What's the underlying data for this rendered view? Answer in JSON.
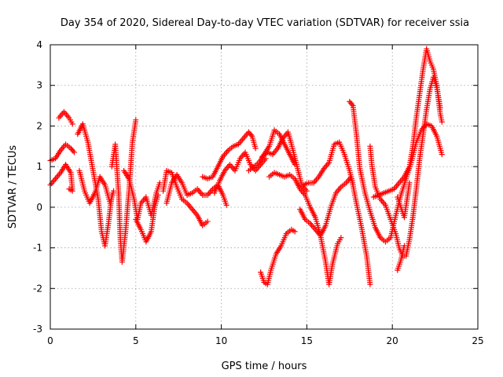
{
  "chart_data": {
    "type": "scatter",
    "title": "Day 354 of 2020, Sidereal Day-to-day VTEC variation (SDTVAR) for receiver ssia",
    "xlabel": "GPS time / hours",
    "ylabel": "SDTVAR / TECUs",
    "xlim": [
      0,
      25
    ],
    "ylim": [
      -3,
      4
    ],
    "xticks": [
      0,
      5,
      10,
      15,
      20,
      25
    ],
    "yticks": [
      -3,
      -2,
      -1,
      0,
      1,
      2,
      3,
      4
    ],
    "grid": true,
    "marker": "+",
    "color": "#ff0000",
    "series": [
      {
        "name": "track-a",
        "points": [
          [
            0.0,
            1.15
          ],
          [
            0.3,
            1.2
          ],
          [
            0.6,
            1.4
          ],
          [
            0.9,
            1.55
          ],
          [
            1.2,
            1.45
          ],
          [
            1.4,
            1.35
          ]
        ]
      },
      {
        "name": "track-b",
        "points": [
          [
            0.5,
            2.2
          ],
          [
            0.8,
            2.35
          ],
          [
            1.1,
            2.2
          ],
          [
            1.3,
            2.05
          ]
        ]
      },
      {
        "name": "track-c",
        "points": [
          [
            0.0,
            0.55
          ],
          [
            0.3,
            0.7
          ],
          [
            0.6,
            0.85
          ],
          [
            0.9,
            1.05
          ],
          [
            1.2,
            0.85
          ],
          [
            1.3,
            0.4
          ],
          [
            1.1,
            0.45
          ]
        ]
      },
      {
        "name": "track-d",
        "points": [
          [
            1.6,
            1.8
          ],
          [
            1.9,
            2.05
          ],
          [
            2.2,
            1.6
          ],
          [
            2.5,
            0.9
          ],
          [
            2.8,
            0.2
          ],
          [
            3.0,
            -0.6
          ],
          [
            3.2,
            -0.95
          ],
          [
            3.4,
            -0.4
          ],
          [
            3.6,
            0.3
          ]
        ]
      },
      {
        "name": "track-e",
        "points": [
          [
            1.7,
            0.9
          ],
          [
            2.0,
            0.4
          ],
          [
            2.3,
            0.1
          ],
          [
            2.6,
            0.35
          ],
          [
            2.9,
            0.75
          ],
          [
            3.2,
            0.55
          ],
          [
            3.5,
            0.1
          ],
          [
            3.7,
            0.4
          ]
        ]
      },
      {
        "name": "track-f",
        "points": [
          [
            3.6,
            1.0
          ],
          [
            3.8,
            1.55
          ],
          [
            4.0,
            0.3
          ],
          [
            4.1,
            -0.8
          ],
          [
            4.2,
            -1.35
          ],
          [
            4.4,
            -0.6
          ],
          [
            4.6,
            0.4
          ],
          [
            4.8,
            1.6
          ],
          [
            5.0,
            2.15
          ]
        ]
      },
      {
        "name": "track-g",
        "points": [
          [
            4.3,
            0.9
          ],
          [
            4.6,
            0.7
          ],
          [
            4.9,
            0.2
          ],
          [
            5.1,
            -0.3
          ],
          [
            5.3,
            0.1
          ],
          [
            5.6,
            0.25
          ],
          [
            5.9,
            -0.2
          ],
          [
            6.2,
            0.35
          ],
          [
            6.4,
            0.6
          ]
        ]
      },
      {
        "name": "track-h",
        "points": [
          [
            5.0,
            -0.3
          ],
          [
            5.3,
            -0.55
          ],
          [
            5.6,
            -0.85
          ],
          [
            5.9,
            -0.6
          ],
          [
            6.1,
            0.0
          ],
          [
            6.3,
            0.3
          ]
        ]
      },
      {
        "name": "track-i",
        "points": [
          [
            6.6,
            0.4
          ],
          [
            6.8,
            0.9
          ],
          [
            7.1,
            0.85
          ],
          [
            7.4,
            0.5
          ],
          [
            7.7,
            0.2
          ],
          [
            8.0,
            0.1
          ],
          [
            8.3,
            -0.05
          ],
          [
            8.6,
            -0.2
          ],
          [
            8.9,
            -0.45
          ],
          [
            9.2,
            -0.35
          ]
        ]
      },
      {
        "name": "track-j",
        "points": [
          [
            6.8,
            0.1
          ],
          [
            7.1,
            0.6
          ],
          [
            7.4,
            0.8
          ],
          [
            7.7,
            0.6
          ],
          [
            8.0,
            0.3
          ],
          [
            8.3,
            0.35
          ],
          [
            8.6,
            0.45
          ],
          [
            8.9,
            0.3
          ],
          [
            9.2,
            0.3
          ],
          [
            9.5,
            0.45
          ],
          [
            9.8,
            0.55
          ],
          [
            10.1,
            0.3
          ],
          [
            10.3,
            0.05
          ]
        ]
      },
      {
        "name": "track-k",
        "points": [
          [
            8.9,
            0.75
          ],
          [
            9.2,
            0.7
          ],
          [
            9.5,
            0.75
          ],
          [
            9.8,
            1.0
          ],
          [
            10.1,
            1.25
          ],
          [
            10.4,
            1.4
          ],
          [
            10.7,
            1.5
          ],
          [
            11.0,
            1.55
          ],
          [
            11.3,
            1.7
          ],
          [
            11.6,
            1.85
          ],
          [
            11.8,
            1.75
          ],
          [
            12.0,
            1.45
          ]
        ]
      },
      {
        "name": "track-l",
        "points": [
          [
            9.6,
            0.35
          ],
          [
            9.9,
            0.65
          ],
          [
            10.2,
            0.9
          ],
          [
            10.5,
            1.05
          ],
          [
            10.8,
            0.9
          ],
          [
            11.1,
            1.2
          ],
          [
            11.4,
            1.35
          ],
          [
            11.7,
            1.05
          ],
          [
            12.0,
            0.9
          ],
          [
            12.3,
            1.05
          ],
          [
            12.6,
            1.2
          ]
        ]
      },
      {
        "name": "track-m",
        "points": [
          [
            11.6,
            0.9
          ],
          [
            11.9,
            1.0
          ],
          [
            12.2,
            1.1
          ],
          [
            12.5,
            1.3
          ],
          [
            12.8,
            1.5
          ],
          [
            13.1,
            1.9
          ],
          [
            13.4,
            1.8
          ],
          [
            13.7,
            1.55
          ],
          [
            14.0,
            1.3
          ],
          [
            14.3,
            1.05
          ]
        ]
      },
      {
        "name": "track-n",
        "points": [
          [
            12.4,
            1.25
          ],
          [
            12.7,
            1.35
          ],
          [
            13.0,
            1.3
          ],
          [
            13.3,
            1.45
          ],
          [
            13.6,
            1.7
          ],
          [
            13.9,
            1.85
          ],
          [
            14.1,
            1.55
          ],
          [
            14.4,
            1.05
          ],
          [
            14.7,
            0.55
          ],
          [
            15.0,
            0.4
          ]
        ]
      },
      {
        "name": "track-o",
        "points": [
          [
            12.8,
            0.75
          ],
          [
            13.1,
            0.85
          ],
          [
            13.4,
            0.8
          ],
          [
            13.7,
            0.75
          ],
          [
            14.0,
            0.8
          ],
          [
            14.3,
            0.7
          ],
          [
            14.6,
            0.45
          ],
          [
            14.9,
            0.3
          ],
          [
            15.2,
            0.0
          ],
          [
            15.5,
            -0.25
          ],
          [
            15.8,
            -0.7
          ],
          [
            16.1,
            -1.35
          ],
          [
            16.3,
            -1.9
          ],
          [
            16.5,
            -1.4
          ],
          [
            16.8,
            -0.9
          ],
          [
            17.0,
            -0.75
          ]
        ]
      },
      {
        "name": "track-p",
        "points": [
          [
            12.3,
            -1.6
          ],
          [
            12.5,
            -1.85
          ],
          [
            12.7,
            -1.9
          ],
          [
            12.9,
            -1.55
          ],
          [
            13.2,
            -1.15
          ],
          [
            13.5,
            -0.95
          ],
          [
            13.8,
            -0.65
          ],
          [
            14.1,
            -0.55
          ],
          [
            14.3,
            -0.6
          ]
        ]
      },
      {
        "name": "track-q",
        "points": [
          [
            14.6,
            -0.05
          ],
          [
            14.9,
            -0.3
          ],
          [
            15.2,
            -0.4
          ],
          [
            15.5,
            -0.55
          ],
          [
            15.8,
            -0.7
          ],
          [
            16.1,
            -0.45
          ],
          [
            16.4,
            0.0
          ],
          [
            16.7,
            0.35
          ],
          [
            17.0,
            0.5
          ],
          [
            17.3,
            0.6
          ],
          [
            17.6,
            0.75
          ],
          [
            17.9,
            0.1
          ],
          [
            18.2,
            -0.5
          ],
          [
            18.5,
            -1.2
          ],
          [
            18.7,
            -1.9
          ]
        ]
      },
      {
        "name": "track-r",
        "points": [
          [
            14.8,
            0.55
          ],
          [
            15.1,
            0.6
          ],
          [
            15.4,
            0.6
          ],
          [
            15.7,
            0.75
          ],
          [
            16.0,
            0.95
          ],
          [
            16.3,
            1.1
          ],
          [
            16.6,
            1.55
          ],
          [
            16.9,
            1.6
          ],
          [
            17.2,
            1.3
          ],
          [
            17.5,
            0.9
          ],
          [
            17.7,
            0.55
          ]
        ]
      },
      {
        "name": "track-s",
        "points": [
          [
            17.5,
            2.6
          ],
          [
            17.7,
            2.5
          ],
          [
            17.9,
            1.8
          ],
          [
            18.1,
            0.95
          ],
          [
            18.4,
            0.35
          ],
          [
            18.7,
            -0.1
          ],
          [
            19.0,
            -0.5
          ],
          [
            19.3,
            -0.75
          ],
          [
            19.6,
            -0.85
          ],
          [
            19.9,
            -0.75
          ],
          [
            20.2,
            -0.2
          ],
          [
            20.5,
            0.3
          ],
          [
            20.8,
            0.7
          ],
          [
            21.1,
            1.1
          ],
          [
            21.4,
            1.6
          ],
          [
            21.7,
            1.9
          ],
          [
            22.0,
            2.05
          ],
          [
            22.3,
            2.0
          ],
          [
            22.6,
            1.75
          ],
          [
            22.9,
            1.3
          ]
        ]
      },
      {
        "name": "track-t",
        "points": [
          [
            18.7,
            1.5
          ],
          [
            18.8,
            1.05
          ],
          [
            19.0,
            0.5
          ],
          [
            19.3,
            0.2
          ],
          [
            19.6,
            0.05
          ],
          [
            19.9,
            -0.3
          ],
          [
            20.2,
            -0.65
          ],
          [
            20.4,
            -1.0
          ],
          [
            20.6,
            -1.2
          ],
          [
            20.8,
            -1.2
          ],
          [
            21.0,
            -0.8
          ],
          [
            21.2,
            -0.25
          ],
          [
            21.4,
            0.45
          ],
          [
            21.6,
            1.2
          ],
          [
            21.8,
            1.8
          ],
          [
            22.0,
            2.4
          ],
          [
            22.2,
            2.9
          ],
          [
            22.4,
            3.2
          ],
          [
            22.6,
            2.95
          ],
          [
            22.8,
            2.45
          ]
        ]
      },
      {
        "name": "track-u",
        "points": [
          [
            18.9,
            0.25
          ],
          [
            19.2,
            0.3
          ],
          [
            19.5,
            0.35
          ],
          [
            19.8,
            0.4
          ],
          [
            20.1,
            0.45
          ],
          [
            20.4,
            0.6
          ],
          [
            20.7,
            0.75
          ],
          [
            21.0,
            1.0
          ],
          [
            21.2,
            1.5
          ],
          [
            21.4,
            2.2
          ],
          [
            21.6,
            2.8
          ],
          [
            21.8,
            3.4
          ],
          [
            22.0,
            3.9
          ],
          [
            22.2,
            3.6
          ],
          [
            22.4,
            3.4
          ],
          [
            22.6,
            3.0
          ],
          [
            22.8,
            2.3
          ],
          [
            22.9,
            2.1
          ]
        ]
      },
      {
        "name": "track-v",
        "points": [
          [
            20.3,
            0.25
          ],
          [
            20.5,
            0.0
          ],
          [
            20.7,
            -0.25
          ],
          [
            20.9,
            0.3
          ],
          [
            21.0,
            0.6
          ]
        ]
      },
      {
        "name": "track-w",
        "points": [
          [
            20.3,
            -1.55
          ],
          [
            20.5,
            -1.3
          ],
          [
            20.7,
            -0.95
          ]
        ]
      }
    ]
  }
}
